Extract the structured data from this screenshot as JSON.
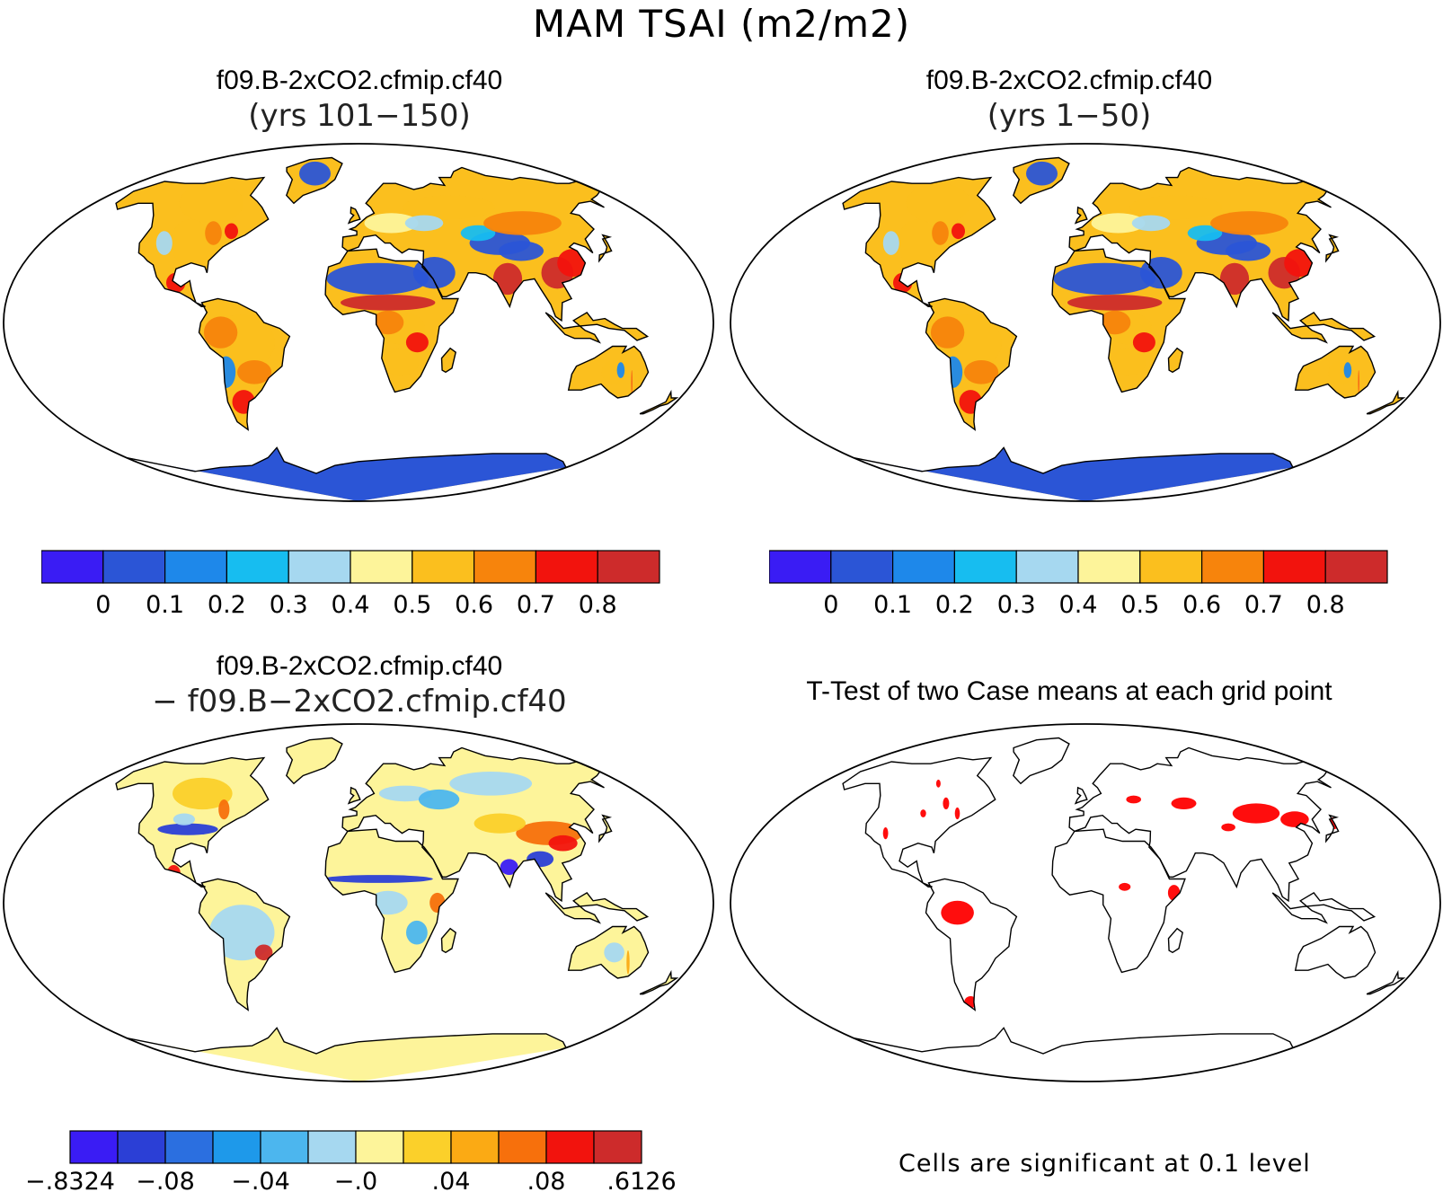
{
  "figure_title": "MAM TSAI (m2/m2)",
  "panels": [
    {
      "id": "top-left",
      "title_line1": "f09.B-2xCO2.cfmip.cf40",
      "title_line2": "(yrs 101−150)"
    },
    {
      "id": "top-right",
      "title_line1": "f09.B-2xCO2.cfmip.cf40",
      "title_line2": "(yrs 1−50)"
    },
    {
      "id": "bottom-left",
      "title_line1": "f09.B-2xCO2.cfmip.cf40",
      "title_line2": "− f09.B−2xCO2.cfmip.cf40"
    },
    {
      "id": "bottom-right",
      "title_line1": "T-Test of two Case means at each grid point",
      "title_line2": ""
    }
  ],
  "colorbars": {
    "abs": {
      "colors": [
        "#3a1cf4",
        "#2b55d6",
        "#1e88ea",
        "#17bdf0",
        "#a6d8f0",
        "#fdf49a",
        "#fbbf1e",
        "#f7840c",
        "#f2130d",
        "#cd2b2b"
      ],
      "labels": [
        "0",
        "0.1",
        "0.2",
        "0.3",
        "0.4",
        "0.5",
        "0.6",
        "0.7",
        "0.8"
      ]
    },
    "diff": {
      "colors": [
        "#3a1cf4",
        "#2b3fd6",
        "#2b6fe0",
        "#1e99ea",
        "#4cb6ee",
        "#a6d8f0",
        "#fdf49a",
        "#fbd02a",
        "#fbaa14",
        "#f7700c",
        "#f2130d",
        "#cd2b2b"
      ],
      "labels": [
        "−.8324",
        "−.08",
        "−.04",
        "−.0",
        ".04",
        ".08",
        ".6126"
      ]
    }
  },
  "significance_note": "Cells are significant at 0.1 level",
  "palette": {
    "ocean": "#ffffff",
    "coast": "#000000",
    "significant": "#ff0000"
  }
}
